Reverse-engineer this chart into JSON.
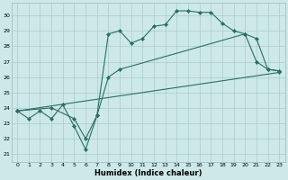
{
  "bg_color": "#cce8e8",
  "grid_color": "#aacccc",
  "line_color": "#2a6e65",
  "xlabel": "Humidex (Indice chaleur)",
  "xlim": [
    -0.5,
    23.5
  ],
  "ylim": [
    20.5,
    30.8
  ],
  "yticks": [
    21,
    22,
    23,
    24,
    25,
    26,
    27,
    28,
    29,
    30
  ],
  "xticks": [
    0,
    1,
    2,
    3,
    4,
    5,
    6,
    7,
    8,
    9,
    10,
    11,
    12,
    13,
    14,
    15,
    16,
    17,
    18,
    19,
    20,
    21,
    22,
    23
  ],
  "line1_x": [
    0,
    1,
    2,
    3,
    4,
    5,
    6,
    7,
    8,
    9,
    10,
    11,
    12,
    13,
    14,
    15,
    16,
    17,
    18,
    19,
    20,
    21,
    22,
    23
  ],
  "line1_y": [
    23.8,
    23.3,
    23.8,
    23.3,
    24.2,
    22.8,
    21.3,
    23.5,
    28.8,
    29.0,
    28.2,
    28.5,
    29.3,
    29.4,
    30.3,
    30.3,
    30.2,
    30.2,
    29.5,
    29.0,
    28.8,
    27.0,
    26.5,
    26.4
  ],
  "line2_x": [
    0,
    3,
    5,
    6,
    7,
    8,
    9,
    20,
    21,
    22,
    23
  ],
  "line2_y": [
    23.8,
    24.0,
    23.3,
    22.0,
    23.5,
    26.0,
    26.5,
    28.8,
    28.5,
    26.5,
    26.4
  ],
  "line3_x": [
    0,
    23
  ],
  "line3_y": [
    23.8,
    26.3
  ]
}
